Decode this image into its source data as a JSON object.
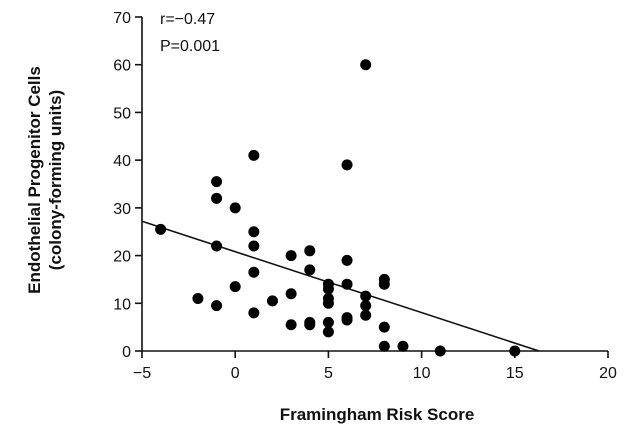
{
  "chart_data": {
    "type": "scatter",
    "xlabel": "Framingham Risk Score",
    "ylabel": [
      "Endothelial Progenitor Cells",
      "(colony-forming units)"
    ],
    "xlim": [
      -5,
      20
    ],
    "ylim": [
      0,
      70
    ],
    "xticks": [
      -5,
      0,
      5,
      10,
      15,
      20
    ],
    "yticks": [
      0,
      10,
      20,
      30,
      40,
      50,
      60,
      70
    ],
    "grid": false,
    "annotations": [
      "r=−0.47",
      "P=0.001"
    ],
    "tick_labels_x": [
      "−5",
      "0",
      "5",
      "10",
      "15",
      "20"
    ],
    "tick_labels_y": [
      "0",
      "10",
      "20",
      "30",
      "40",
      "50",
      "60",
      "70"
    ],
    "regression_line": {
      "x": [
        -5,
        16.3
      ],
      "y": [
        27.2,
        0
      ]
    },
    "points": [
      {
        "x": -4,
        "y": 25.5
      },
      {
        "x": -2,
        "y": 11
      },
      {
        "x": -1,
        "y": 35.5
      },
      {
        "x": -1,
        "y": 32
      },
      {
        "x": -1,
        "y": 22
      },
      {
        "x": -1,
        "y": 9.5
      },
      {
        "x": 0,
        "y": 30
      },
      {
        "x": 0,
        "y": 13.5
      },
      {
        "x": 1,
        "y": 41
      },
      {
        "x": 1,
        "y": 25
      },
      {
        "x": 1,
        "y": 22
      },
      {
        "x": 1,
        "y": 16.5
      },
      {
        "x": 1,
        "y": 8
      },
      {
        "x": 2,
        "y": 10.5
      },
      {
        "x": 3,
        "y": 20
      },
      {
        "x": 3,
        "y": 12
      },
      {
        "x": 3,
        "y": 5.5
      },
      {
        "x": 4,
        "y": 21
      },
      {
        "x": 4,
        "y": 17
      },
      {
        "x": 4,
        "y": 6
      },
      {
        "x": 4,
        "y": 5.5
      },
      {
        "x": 5,
        "y": 14
      },
      {
        "x": 5,
        "y": 13
      },
      {
        "x": 5,
        "y": 11
      },
      {
        "x": 5,
        "y": 10
      },
      {
        "x": 5,
        "y": 6
      },
      {
        "x": 5,
        "y": 4
      },
      {
        "x": 6,
        "y": 39
      },
      {
        "x": 6,
        "y": 19
      },
      {
        "x": 6,
        "y": 14
      },
      {
        "x": 6,
        "y": 7
      },
      {
        "x": 6,
        "y": 6.5
      },
      {
        "x": 7,
        "y": 60
      },
      {
        "x": 7,
        "y": 11.5
      },
      {
        "x": 7,
        "y": 9.5
      },
      {
        "x": 7,
        "y": 7.5
      },
      {
        "x": 8,
        "y": 15
      },
      {
        "x": 8,
        "y": 14
      },
      {
        "x": 8,
        "y": 5
      },
      {
        "x": 8,
        "y": 1
      },
      {
        "x": 9,
        "y": 1
      },
      {
        "x": 11,
        "y": 0
      },
      {
        "x": 15,
        "y": 0
      }
    ]
  }
}
